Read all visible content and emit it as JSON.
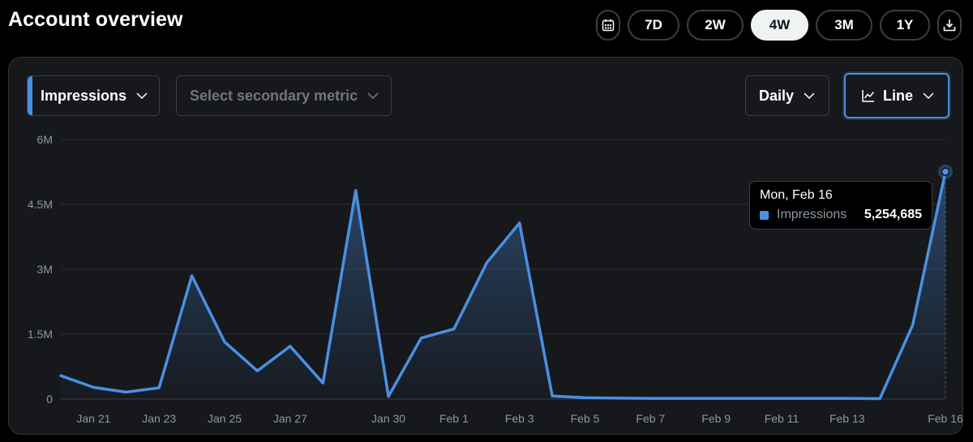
{
  "header": {
    "title": "Account overview"
  },
  "range_buttons": [
    {
      "label": "7D",
      "active": false
    },
    {
      "label": "2W",
      "active": false
    },
    {
      "label": "4W",
      "active": true
    },
    {
      "label": "3M",
      "active": false
    },
    {
      "label": "1Y",
      "active": false
    }
  ],
  "icons": {
    "calendar": "calendar-icon",
    "download": "download-icon",
    "chevron": "chevron-down-icon",
    "line_chart": "line-chart-icon"
  },
  "controls": {
    "primary_metric": "Impressions",
    "secondary_metric_placeholder": "Select secondary metric",
    "granularity": "Daily",
    "chart_type": "Line"
  },
  "tooltip": {
    "date": "Mon, Feb 16",
    "series": "Impressions",
    "value": "5,254,685"
  },
  "colors": {
    "accent": "#4a90e2",
    "background": "#000000",
    "panel": "#16181c"
  },
  "chart_data": {
    "type": "area",
    "series": [
      {
        "name": "Impressions",
        "x": [
          "Jan 20",
          "Jan 21",
          "Jan 22",
          "Jan 23",
          "Jan 24",
          "Jan 25",
          "Jan 26",
          "Jan 27",
          "Jan 28",
          "Jan 29",
          "Jan 30",
          "Jan 31",
          "Feb 1",
          "Feb 2",
          "Feb 3",
          "Feb 4",
          "Feb 5",
          "Feb 6",
          "Feb 7",
          "Feb 8",
          "Feb 9",
          "Feb 10",
          "Feb 11",
          "Feb 12",
          "Feb 13",
          "Feb 14",
          "Feb 15",
          "Feb 16"
        ],
        "values": [
          540000,
          270000,
          160000,
          260000,
          2850000,
          1320000,
          650000,
          1220000,
          370000,
          4820000,
          60000,
          1410000,
          1620000,
          3150000,
          4070000,
          70000,
          30000,
          20000,
          15000,
          15000,
          15000,
          15000,
          15000,
          15000,
          15000,
          10000,
          1710000,
          5254685
        ]
      }
    ],
    "x_tick_labels": [
      "Jan 21",
      "Jan 23",
      "Jan 25",
      "Jan 27",
      "Jan 30",
      "Feb 1",
      "Feb 3",
      "Feb 5",
      "Feb 7",
      "Feb 9",
      "Feb 11",
      "Feb 13",
      "Feb 16"
    ],
    "y_tick_labels": [
      "0",
      "1.5M",
      "3M",
      "4.5M",
      "6M"
    ],
    "ylim": [
      0,
      6000000
    ],
    "grid": true,
    "highlighted_point": "Feb 16"
  }
}
